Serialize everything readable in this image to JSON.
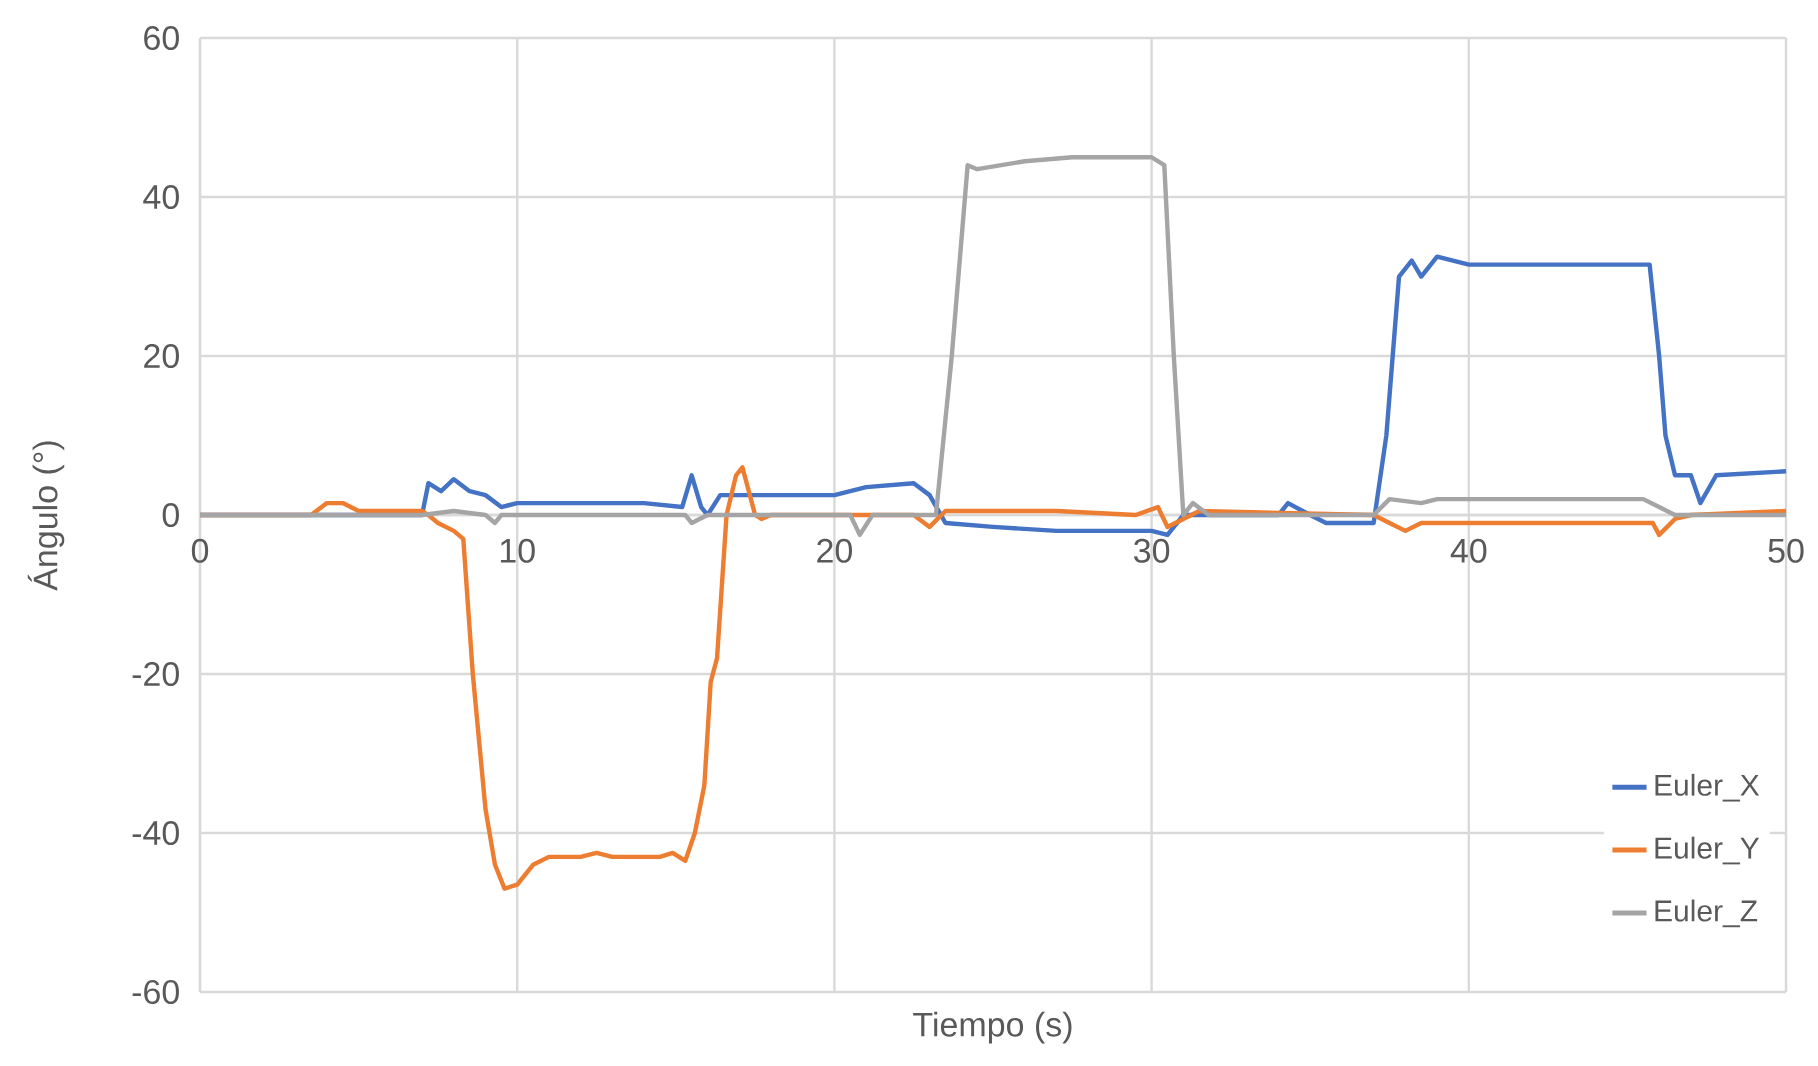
{
  "chart_data": {
    "type": "line",
    "xlabel": "Tiempo (s)",
    "ylabel": "Ángulo (°)",
    "xlim": [
      0,
      50
    ],
    "ylim": [
      -60,
      60
    ],
    "xticks": [
      0,
      10,
      20,
      30,
      40,
      50
    ],
    "yticks": [
      -60,
      -40,
      -20,
      0,
      20,
      40,
      60
    ],
    "grid": true,
    "legend": "bottom right",
    "marker": "none",
    "line_style": "solid",
    "series": [
      {
        "name": "Euler_X",
        "color": "#4472c4",
        "x": [
          0,
          7,
          7.2,
          7.6,
          8,
          8.5,
          9,
          9.5,
          10,
          12,
          14,
          15.2,
          15.5,
          15.8,
          16,
          16.4,
          20,
          21,
          22.5,
          23,
          23.5,
          25,
          27,
          30,
          30.5,
          31,
          34,
          34.3,
          35,
          35.5,
          37,
          37.4,
          37.8,
          38.2,
          38.5,
          39,
          40,
          45.7,
          46,
          46.2,
          46.5,
          47,
          47.3,
          47.8,
          50
        ],
        "values": [
          0,
          0,
          4,
          3,
          4.5,
          3,
          2.5,
          1,
          1.5,
          1.5,
          1.5,
          1,
          5,
          1,
          0,
          2.5,
          2.5,
          3.5,
          4,
          2.5,
          -1,
          -1.5,
          -2,
          -2,
          -2.5,
          0,
          0,
          1.5,
          0,
          -1,
          -1,
          10,
          30,
          32,
          30,
          32.5,
          31.5,
          31.5,
          20,
          10,
          5,
          5,
          1.5,
          5,
          5.5
        ]
      },
      {
        "name": "Euler_Y",
        "color": "#ed7d31",
        "x": [
          0,
          3.5,
          4,
          4.5,
          5,
          7,
          7.2,
          7.5,
          8,
          8.3,
          8.6,
          9,
          9.3,
          9.6,
          10,
          10.5,
          11,
          12,
          12.5,
          13,
          14.5,
          14.9,
          15.3,
          15.6,
          15.9,
          16.1,
          16.3,
          16.6,
          16.9,
          17.1,
          17.5,
          17.7,
          18,
          22.5,
          23,
          23.5,
          27,
          29.5,
          30.2,
          30.5,
          31.5,
          37,
          37.5,
          38,
          38.5,
          45.8,
          46,
          46.5,
          47,
          50
        ],
        "values": [
          0,
          0,
          1.5,
          1.5,
          0.5,
          0.5,
          0,
          -1,
          -2,
          -3,
          -20,
          -37,
          -44,
          -47,
          -46.5,
          -44,
          -43,
          -43,
          -42.5,
          -43,
          -43,
          -42.5,
          -43.5,
          -40,
          -34,
          -21,
          -18,
          0,
          5,
          6,
          0,
          -0.5,
          0,
          0,
          -1.5,
          0.5,
          0.5,
          0,
          1,
          -1.5,
          0.5,
          0,
          -1,
          -2,
          -1,
          -1,
          -2.5,
          -0.5,
          0,
          0.5
        ]
      },
      {
        "name": "Euler_Z",
        "color": "#a5a5a5",
        "x": [
          0,
          7,
          8,
          9,
          9.3,
          9.5,
          15.3,
          15.5,
          16,
          20.5,
          20.8,
          21.2,
          23.2,
          23.7,
          24.2,
          24.5,
          26,
          27.5,
          30,
          30.4,
          30.7,
          31,
          31.3,
          31.8,
          37,
          37.5,
          38.5,
          39,
          45.5,
          46,
          46.5,
          50
        ],
        "values": [
          0,
          0,
          0.5,
          0,
          -1,
          0,
          0,
          -1,
          0,
          0,
          -2.5,
          0,
          0,
          20,
          44,
          43.5,
          44.5,
          45,
          45,
          44,
          20,
          0,
          1.5,
          0,
          0,
          2,
          1.5,
          2,
          2,
          1,
          0,
          0
        ]
      }
    ]
  }
}
